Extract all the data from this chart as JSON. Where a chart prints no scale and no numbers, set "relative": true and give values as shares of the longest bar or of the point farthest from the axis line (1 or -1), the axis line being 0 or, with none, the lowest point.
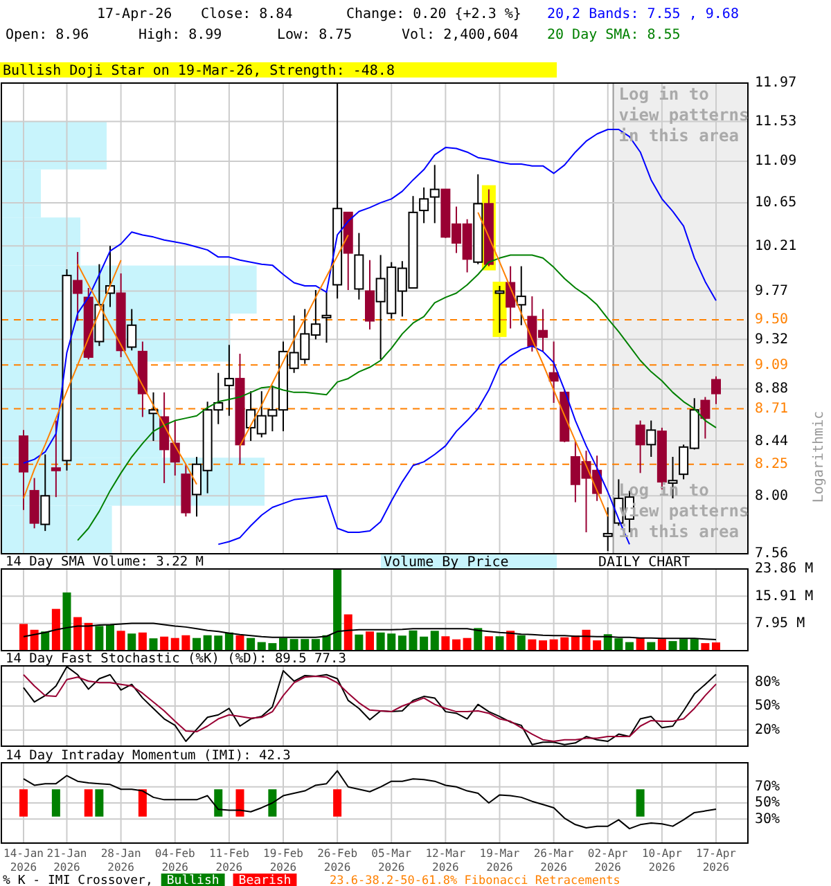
{
  "chart_data": [
    {
      "type": "candlestick",
      "ylabel": "Logarithmic",
      "log": true,
      "grid": true,
      "tick_labels": "y",
      "annotations": [
        "17-Apr-26",
        "Close: 8.84",
        "Change: 0.20 {+2.3 %}",
        "20,2 Bands: 7.55 , 9.68",
        "Open: 8.96",
        "High: 8.99",
        "Low: 8.75",
        "Vol: 2,400,604",
        "20 Day SMA: 8.55",
        "Bullish Doji Star on 19-Mar-26, Strength: -48.8",
        "Log in to view patterns in this area",
        "Log in to view patterns in this area",
        "DAILY CHART",
        "23.6-38.2-50-61.8% Fibonacci Retracements",
        "Volume By Price"
      ],
      "categories": [
        null,
        null,
        null,
        null,
        null,
        null,
        null,
        null,
        null,
        null,
        null,
        null,
        null,
        null,
        null,
        null,
        null,
        null,
        null,
        null,
        null,
        null,
        null,
        null,
        null,
        null,
        null,
        null,
        null,
        null,
        null,
        null,
        null,
        null,
        null,
        null,
        null,
        null,
        null,
        null,
        null,
        null,
        null,
        null,
        null,
        null,
        null,
        null,
        null,
        null,
        null,
        null,
        null,
        null,
        null,
        null,
        null,
        null,
        null,
        null,
        null,
        null,
        null,
        null,
        null
      ],
      "ohlc": [
        [
          8.48,
          8.53,
          7.89,
          8.19
        ],
        [
          8.04,
          8.14,
          7.75,
          7.79
        ],
        [
          7.78,
          8.33,
          7.73,
          8.0
        ],
        [
          8.22,
          8.61,
          7.99,
          8.2
        ],
        [
          8.28,
          9.98,
          8.2,
          9.92
        ],
        [
          9.87,
          10.15,
          9.49,
          9.75
        ],
        [
          9.71,
          9.8,
          9.14,
          9.16
        ],
        [
          9.3,
          10.03,
          9.26,
          9.64
        ],
        [
          9.75,
          10.21,
          9.62,
          9.82
        ],
        [
          9.75,
          9.94,
          9.16,
          9.22
        ],
        [
          9.25,
          9.6,
          9.22,
          9.45
        ],
        [
          9.21,
          9.3,
          8.64,
          8.84
        ],
        [
          8.67,
          8.85,
          8.44,
          8.7
        ],
        [
          8.64,
          8.85,
          8.1,
          8.37
        ],
        [
          8.42,
          8.61,
          8.16,
          8.27
        ],
        [
          8.17,
          8.25,
          7.84,
          7.87
        ],
        [
          8.01,
          8.31,
          7.84,
          8.25
        ],
        [
          8.2,
          8.77,
          8.02,
          8.7
        ],
        [
          8.7,
          9.02,
          8.58,
          8.76
        ],
        [
          8.91,
          9.27,
          8.65,
          8.97
        ],
        [
          8.97,
          9.19,
          8.25,
          8.41
        ],
        [
          8.55,
          8.86,
          8.44,
          8.7
        ],
        [
          8.5,
          8.86,
          8.47,
          8.65
        ],
        [
          8.65,
          8.91,
          8.52,
          8.7
        ],
        [
          8.7,
          9.3,
          8.52,
          9.21
        ],
        [
          9.06,
          9.54,
          9.02,
          9.2
        ],
        [
          9.14,
          9.6,
          9.1,
          9.37
        ],
        [
          9.36,
          9.78,
          9.32,
          9.46
        ],
        [
          9.52,
          9.76,
          9.29,
          9.54
        ],
        [
          9.83,
          11.97,
          9.7,
          10.59
        ],
        [
          10.55,
          10.55,
          9.78,
          10.14
        ],
        [
          9.79,
          10.34,
          9.69,
          10.12
        ],
        [
          9.77,
          10.07,
          9.41,
          9.49
        ],
        [
          9.67,
          10.12,
          9.14,
          9.89
        ],
        [
          9.56,
          10.05,
          9.51,
          10.0
        ],
        [
          9.77,
          10.06,
          9.53,
          9.99
        ],
        [
          9.8,
          10.72,
          9.8,
          10.55
        ],
        [
          10.57,
          10.81,
          10.44,
          10.69
        ],
        [
          10.71,
          11.05,
          10.44,
          10.79
        ],
        [
          10.79,
          10.79,
          10.29,
          10.3
        ],
        [
          10.43,
          10.61,
          10.14,
          10.24
        ],
        [
          10.43,
          10.48,
          9.95,
          10.08
        ],
        [
          10.05,
          10.95,
          10.03,
          10.64
        ],
        [
          10.64,
          10.79,
          10.01,
          10.03
        ],
        [
          9.75,
          9.82,
          9.38,
          9.77
        ],
        [
          9.85,
          10.01,
          9.42,
          9.62
        ],
        [
          9.64,
          10.01,
          9.45,
          9.72
        ],
        [
          9.53,
          9.72,
          9.21,
          9.26
        ],
        [
          9.4,
          9.6,
          9.21,
          9.34
        ],
        [
          9.02,
          9.3,
          8.76,
          8.95
        ],
        [
          8.85,
          8.87,
          8.43,
          8.44
        ],
        [
          8.31,
          8.44,
          7.95,
          8.09
        ],
        [
          8.27,
          8.36,
          7.72,
          8.14
        ],
        [
          8.2,
          8.32,
          7.96,
          8.02
        ],
        [
          7.69,
          7.91,
          7.58,
          7.71
        ],
        [
          7.79,
          8.13,
          7.77,
          7.98
        ],
        [
          7.82,
          8.04,
          7.72,
          7.99
        ],
        [
          8.57,
          8.61,
          8.18,
          8.41
        ],
        [
          8.41,
          8.61,
          8.31,
          8.53
        ],
        [
          8.52,
          8.55,
          8.05,
          8.11
        ],
        [
          8.1,
          8.31,
          7.98,
          8.12
        ],
        [
          8.17,
          8.41,
          8.13,
          8.39
        ],
        [
          8.38,
          8.8,
          8.37,
          8.7
        ],
        [
          8.78,
          8.81,
          8.46,
          8.63
        ],
        [
          8.96,
          8.99,
          8.75,
          8.84
        ]
      ],
      "series": [
        {
          "type": "line",
          "color": "#0000ff",
          "values": [
            8.26,
            8.29,
            8.35,
            8.5,
            9.2,
            9.56,
            9.71,
            9.93,
            10.16,
            10.23,
            10.35,
            10.32,
            10.3,
            10.27,
            10.25,
            10.23,
            10.2,
            10.17,
            10.1,
            10.1,
            10.07,
            10.05,
            10.03,
            10.02,
            9.93,
            9.85,
            9.82,
            9.82,
            9.76,
            10.32,
            10.46,
            10.56,
            10.6,
            10.65,
            10.69,
            10.77,
            10.89,
            11.0,
            11.16,
            11.24,
            11.23,
            11.19,
            11.13,
            11.11,
            11.08,
            11.06,
            11.06,
            11.04,
            11.04,
            10.96,
            11.05,
            11.19,
            11.31,
            11.39,
            11.44,
            11.44,
            11.36,
            11.19,
            10.89,
            10.69,
            10.56,
            10.41,
            10.09,
            9.86,
            9.68
          ]
        },
        {
          "type": "line",
          "color": "#0000ff",
          "values": [
            null,
            null,
            null,
            null,
            null,
            null,
            null,
            null,
            null,
            null,
            null,
            null,
            null,
            null,
            null,
            null,
            null,
            null,
            7.63,
            7.65,
            7.68,
            7.77,
            7.85,
            7.91,
            7.94,
            7.97,
            7.98,
            7.99,
            8.0,
            7.75,
            7.72,
            7.72,
            7.73,
            7.8,
            7.96,
            8.11,
            8.24,
            8.27,
            8.33,
            8.4,
            8.52,
            8.61,
            8.71,
            8.87,
            9.09,
            9.17,
            9.23,
            9.26,
            9.21,
            9.11,
            8.87,
            8.61,
            8.4,
            8.22,
            8.03,
            7.82,
            7.63,
            null,
            null,
            null,
            null,
            null,
            null,
            null,
            null
          ]
        },
        {
          "type": "line",
          "color": "#008000",
          "values": [
            null,
            null,
            null,
            null,
            null,
            7.66,
            7.75,
            7.88,
            8.04,
            8.18,
            8.31,
            8.42,
            8.52,
            8.57,
            8.61,
            8.63,
            8.65,
            8.72,
            8.77,
            8.79,
            8.81,
            8.85,
            8.89,
            8.9,
            8.87,
            8.85,
            8.85,
            8.84,
            8.83,
            8.94,
            8.97,
            9.03,
            9.07,
            9.13,
            9.24,
            9.37,
            9.47,
            9.53,
            9.66,
            9.71,
            9.75,
            9.83,
            9.93,
            10.05,
            10.09,
            10.12,
            10.12,
            10.12,
            10.09,
            10.0,
            9.89,
            9.8,
            9.73,
            9.64,
            9.51,
            9.39,
            9.26,
            9.13,
            9.03,
            8.95,
            8.85,
            8.77,
            8.71,
            8.61,
            8.55
          ]
        },
        {
          "type": "line",
          "color": "#ff8000",
          "values": [
            7.98,
            8.21,
            8.41,
            8.63,
            8.86,
            9.09,
            9.33,
            9.57,
            9.82,
            10.07,
            null,
            null,
            null,
            null,
            null,
            null,
            null,
            null,
            null,
            null,
            8.4,
            8.57,
            8.74,
            8.93,
            9.12,
            9.32,
            9.51,
            9.71,
            9.91,
            10.11,
            10.32,
            null,
            null,
            null,
            null,
            null,
            null,
            null,
            null,
            null,
            null,
            null,
            null,
            null,
            null,
            null,
            null,
            null,
            null,
            null,
            null,
            null,
            null,
            null,
            null,
            null,
            null,
            null,
            null,
            null,
            null,
            null,
            null,
            null,
            null
          ]
        },
        {
          "type": "line",
          "color": "#ff8000",
          "values": [
            null,
            null,
            null,
            null,
            null,
            10.03,
            9.83,
            9.64,
            9.45,
            9.27,
            9.09,
            8.91,
            8.74,
            8.57,
            8.4,
            8.25,
            8.09,
            null,
            null,
            null,
            null,
            null,
            null,
            null,
            null,
            null,
            null,
            null,
            null,
            null,
            null,
            null,
            null,
            null,
            null,
            null,
            null,
            null,
            null,
            null,
            null,
            null,
            10.55,
            10.3,
            10.05,
            9.8,
            9.56,
            9.32,
            9.1,
            8.87,
            8.65,
            8.44,
            8.24,
            8.04,
            7.84,
            null,
            null,
            null,
            null,
            null,
            null,
            null,
            null,
            null,
            null
          ]
        }
      ],
      "ylim": [
        7.56,
        11.97
      ],
      "yticks": [
        7.56,
        {
          "value": 8,
          "label": "8.00"
        },
        8.44,
        8.88,
        9.32,
        9.77,
        10.21,
        10.65,
        11.09,
        11.53,
        11.97
      ],
      "ref_lines": [
        {
          "axis": "y",
          "value": 9.5,
          "label": "9.50",
          "color": "#ff8000",
          "line_style": "dashed"
        },
        {
          "axis": "y",
          "value": 9.09,
          "label": "9.09",
          "color": "#ff8000",
          "line_style": "dashed"
        },
        {
          "axis": "y",
          "value": 8.71,
          "label": "8.71",
          "color": "#ff8000",
          "line_style": "dashed"
        },
        {
          "axis": "y",
          "value": 8.25,
          "label": "8.25",
          "color": "#ff8000",
          "line_style": "dashed"
        }
      ]
    },
    {
      "type": "bar",
      "orientation": "horizontal",
      "relative": true,
      "color": "#c8f4fc",
      "categories": [
        null,
        null,
        null,
        null,
        null,
        null,
        null,
        null,
        null
      ],
      "values": [
        0.4,
        0.15,
        0.3,
        0.97,
        0.87,
        0.53,
        0.61,
        1,
        0.42
      ]
    },
    {
      "type": "bar",
      "title": "14 Day SMA Volume: 3.22 M",
      "grid": true,
      "tick_labels": "y",
      "categories": [
        null,
        null,
        null,
        null,
        null,
        null,
        null,
        null,
        null,
        null,
        null,
        null,
        null,
        null,
        null,
        null,
        null,
        null,
        null,
        null,
        null,
        null,
        null,
        null,
        null,
        null,
        null,
        null,
        null,
        null,
        null,
        null,
        null,
        null,
        null,
        null,
        null,
        null,
        null,
        null,
        null,
        null,
        null,
        null,
        null,
        null,
        null,
        null,
        null,
        null,
        null,
        null,
        null,
        null,
        null,
        null,
        null,
        null,
        null,
        null,
        null,
        null,
        null,
        null,
        null
      ],
      "series": [
        {
          "type": "bar",
          "values": [
            7.8,
            6.1,
            5.6,
            12.2,
            17.0,
            9.8,
            8.1,
            7.2,
            7.5,
            5.8,
            5.0,
            5.3,
            3.6,
            4.1,
            3.7,
            4.5,
            3.7,
            4.5,
            4.4,
            5.3,
            4.5,
            3.7,
            2.5,
            2.2,
            3.7,
            3.4,
            3.4,
            3.4,
            4.5,
            23.8,
            10.6,
            4.7,
            5.6,
            5.3,
            5.0,
            4.4,
            5.9,
            4.1,
            5.8,
            4.2,
            3.3,
            3.7,
            6.6,
            4.2,
            4.2,
            5.8,
            4.5,
            3.3,
            3.0,
            3.3,
            3.9,
            4.4,
            6.1,
            3.0,
            4.8,
            3.6,
            2.5,
            3.7,
            2.5,
            3.4,
            2.8,
            3.4,
            3.4,
            2.2,
            2.4
          ],
          "colors": [
            "#ff0000",
            "#ff0000",
            "#008000",
            "#ff0000",
            "#008000",
            "#ff0000",
            "#ff0000",
            "#008000",
            "#008000",
            "#ff0000",
            "#008000",
            "#ff0000",
            "#008000",
            "#ff0000",
            "#ff0000",
            "#ff0000",
            "#008000",
            "#008000",
            "#008000",
            "#008000",
            "#ff0000",
            "#008000",
            "#008000",
            "#008000",
            "#008000",
            "#008000",
            "#008000",
            "#008000",
            "#008000",
            "#008000",
            "#ff0000",
            "#008000",
            "#ff0000",
            "#008000",
            "#008000",
            "#008000",
            "#008000",
            "#008000",
            "#008000",
            "#ff0000",
            "#ff0000",
            "#ff0000",
            "#008000",
            "#ff0000",
            "#008000",
            "#ff0000",
            "#008000",
            "#ff0000",
            "#ff0000",
            "#ff0000",
            "#ff0000",
            "#ff0000",
            "#ff0000",
            "#ff0000",
            "#008000",
            "#008000",
            "#008000",
            "#ff0000",
            "#008000",
            "#ff0000",
            "#008000",
            "#008000",
            "#008000",
            "#ff0000",
            "#ff0000"
          ]
        },
        {
          "type": "line",
          "color": "#000000",
          "values": [
            4.1,
            4.7,
            5.3,
            6.1,
            6.7,
            7.2,
            7.2,
            7.5,
            7.6,
            7.8,
            8.0,
            8.0,
            8.0,
            7.6,
            7.2,
            6.9,
            6.4,
            5.9,
            5.6,
            5.1,
            4.7,
            4.4,
            4.1,
            3.9,
            3.9,
            3.9,
            3.9,
            3.9,
            4.2,
            5.6,
            5.9,
            6.1,
            6.1,
            6.1,
            6.1,
            6.2,
            6.4,
            6.4,
            6.4,
            6.4,
            6.4,
            6.4,
            5.9,
            5.6,
            5.3,
            5.1,
            4.8,
            4.7,
            4.5,
            4.4,
            4.4,
            4.2,
            4.2,
            4.1,
            4.1,
            3.9,
            3.9,
            3.7,
            3.7,
            3.6,
            3.6,
            3.6,
            3.6,
            3.4,
            3.22
          ]
        }
      ],
      "ylim": [
        0,
        23.86
      ],
      "yticks": [
        {
          "value": 7.95,
          "label": "7.95 M"
        },
        {
          "value": 15.91,
          "label": "15.91 M"
        },
        {
          "value": 23.86,
          "label": "23.86 M"
        }
      ]
    },
    {
      "type": "line",
      "title": "14 Day Fast Stochastic (%K) (%D): 89.5  77.3",
      "grid": true,
      "tick_labels": "y",
      "categories": [
        null,
        null,
        null,
        null,
        null,
        null,
        null,
        null,
        null,
        null,
        null,
        null,
        null,
        null,
        null,
        null,
        null,
        null,
        null,
        null,
        null,
        null,
        null,
        null,
        null,
        null,
        null,
        null,
        null,
        null,
        null,
        null,
        null,
        null,
        null,
        null,
        null,
        null,
        null,
        null,
        null,
        null,
        null,
        null,
        null,
        null,
        null,
        null,
        null,
        null,
        null,
        null,
        null,
        null,
        null,
        null,
        null,
        null,
        null,
        null,
        null,
        null,
        null,
        null,
        null
      ],
      "series": [
        {
          "color": "#000000",
          "values": [
            73,
            55,
            63,
            75,
            99,
            89,
            71,
            84,
            89,
            70,
            77,
            60,
            47,
            34,
            26,
            6,
            21,
            36,
            39,
            47,
            25,
            34,
            37,
            49,
            94,
            81,
            88,
            87,
            89,
            84,
            57,
            47,
            33,
            44,
            43,
            44,
            57,
            62,
            60,
            43,
            41,
            34,
            52,
            43,
            37,
            30,
            26,
            2,
            5,
            5,
            2,
            4,
            12,
            8,
            6,
            15,
            12,
            34,
            37,
            23,
            25,
            44,
            65,
            77,
            89.5
          ]
        },
        {
          "color": "#990033",
          "values": [
            89,
            75,
            63,
            62,
            83,
            86,
            81,
            79,
            79,
            77,
            75,
            66,
            55,
            44,
            31,
            19,
            18,
            25,
            34,
            39,
            37,
            35,
            36,
            43,
            63,
            79,
            86,
            87,
            86,
            79,
            66,
            54,
            45,
            44,
            43,
            50,
            55,
            60,
            52,
            47,
            43,
            43,
            44,
            41,
            34,
            31,
            23,
            15,
            8,
            6,
            8,
            8,
            10,
            10,
            12,
            12,
            12,
            25,
            32,
            31,
            31,
            34,
            47,
            63,
            77.3
          ]
        }
      ],
      "ylim": [
        0,
        100
      ],
      "yticks": [
        {
          "value": 20,
          "label": "20%"
        },
        {
          "value": 50,
          "label": "50%"
        },
        {
          "value": 80,
          "label": "80%"
        }
      ]
    },
    {
      "type": "line",
      "title": "14 Day Intraday Momentum (IMI): 42.3",
      "grid": true,
      "legend": "bottom",
      "legend_title": "% K - IMI Crossover,",
      "categories": [
        "14-Jan 2026",
        null,
        null,
        null,
        "21-Jan 2026",
        null,
        null,
        null,
        null,
        "28-Jan 2026",
        null,
        null,
        null,
        null,
        "04-Feb 2026",
        null,
        null,
        null,
        null,
        "11-Feb 2026",
        null,
        null,
        null,
        null,
        "19-Feb 2026",
        null,
        null,
        null,
        null,
        "26-Feb 2026",
        null,
        null,
        null,
        null,
        "05-Mar 2026",
        null,
        null,
        null,
        null,
        "12-Mar 2026",
        null,
        null,
        null,
        null,
        "19-Mar 2026",
        null,
        null,
        null,
        null,
        "26-Mar 2026",
        null,
        null,
        null,
        null,
        "02-Apr 2026",
        null,
        null,
        null,
        null,
        "10-Apr 2026",
        null,
        null,
        null,
        null,
        "17-Apr 2026"
      ],
      "series": [
        {
          "color": "#000000",
          "values": [
            80,
            72,
            74,
            74,
            84,
            77,
            75,
            74,
            73,
            67,
            67,
            65,
            57,
            54,
            54,
            54,
            54,
            59,
            42,
            41,
            41,
            39,
            44,
            50,
            59,
            62,
            65,
            72,
            74,
            90,
            70,
            67,
            64,
            70,
            77,
            77,
            80,
            79,
            77,
            72,
            70,
            65,
            62,
            50,
            60,
            59,
            57,
            52,
            48,
            44,
            31,
            23,
            19,
            21,
            21,
            29,
            18,
            23,
            25,
            24,
            21,
            29,
            38,
            40,
            42.3
          ]
        },
        {
          "type": "bar",
          "name": "Bullish",
          "color": "#008000",
          "base": [
            null,
            null,
            null,
            33,
            null,
            null,
            null,
            33,
            null,
            null,
            null,
            null,
            null,
            null,
            null,
            null,
            null,
            null,
            33,
            null,
            null,
            null,
            null,
            33,
            null,
            null,
            null,
            null,
            null,
            null,
            null,
            null,
            null,
            null,
            null,
            null,
            null,
            null,
            null,
            null,
            null,
            null,
            null,
            null,
            null,
            null,
            null,
            null,
            null,
            null,
            null,
            null,
            null,
            null,
            null,
            null,
            null,
            33,
            null,
            null,
            null,
            null,
            null,
            null,
            null
          ],
          "values": [
            null,
            null,
            null,
            34,
            null,
            null,
            null,
            34,
            null,
            null,
            null,
            null,
            null,
            null,
            null,
            null,
            null,
            null,
            34,
            null,
            null,
            null,
            null,
            34,
            null,
            null,
            null,
            null,
            null,
            null,
            null,
            null,
            null,
            null,
            null,
            null,
            null,
            null,
            null,
            null,
            null,
            null,
            null,
            null,
            null,
            null,
            null,
            null,
            null,
            null,
            null,
            null,
            null,
            null,
            null,
            null,
            null,
            34,
            null,
            null,
            null,
            null,
            null,
            null,
            null
          ]
        },
        {
          "type": "bar",
          "name": "Bearish",
          "color": "#ff0000",
          "base": [
            33,
            null,
            null,
            null,
            null,
            null,
            33,
            null,
            null,
            null,
            null,
            33,
            null,
            null,
            null,
            null,
            null,
            null,
            null,
            null,
            33,
            null,
            null,
            null,
            null,
            null,
            null,
            null,
            null,
            33,
            null,
            null,
            null,
            null,
            null,
            null,
            null,
            null,
            null,
            null,
            null,
            null,
            null,
            null,
            null,
            null,
            null,
            null,
            null,
            null,
            null,
            null,
            null,
            null,
            null,
            null,
            null,
            null,
            null,
            null,
            null,
            null,
            null,
            null,
            null
          ],
          "values": [
            34,
            null,
            null,
            null,
            null,
            null,
            34,
            null,
            null,
            null,
            null,
            34,
            null,
            null,
            null,
            null,
            null,
            null,
            null,
            null,
            34,
            null,
            null,
            null,
            null,
            null,
            null,
            null,
            null,
            34,
            null,
            null,
            null,
            null,
            null,
            null,
            null,
            null,
            null,
            null,
            null,
            null,
            null,
            null,
            null,
            null,
            null,
            null,
            null,
            null,
            null,
            null,
            null,
            null,
            null,
            null,
            null,
            null,
            null,
            null,
            null,
            null,
            null,
            null,
            null
          ]
        }
      ],
      "ylim": [
        0,
        100
      ],
      "yticks": [
        {
          "value": 30,
          "label": "30%"
        },
        {
          "value": 50,
          "label": "50%"
        },
        {
          "value": 70,
          "label": "70%"
        }
      ]
    }
  ]
}
